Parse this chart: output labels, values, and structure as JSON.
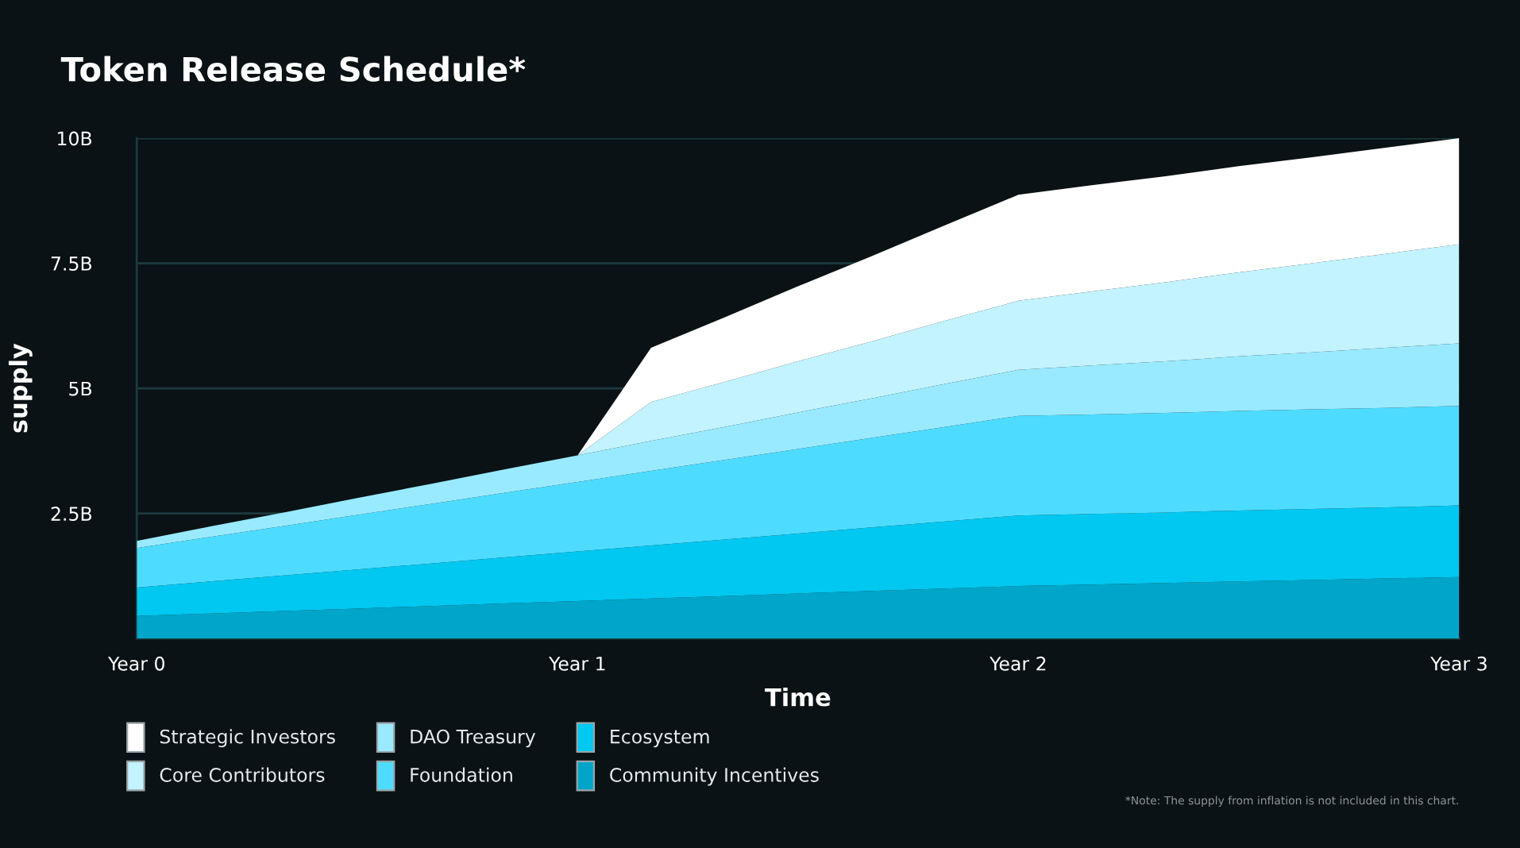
{
  "chart_data": {
    "type": "area",
    "title": "Token Release Schedule*",
    "xlabel": "Time",
    "ylabel": "supply",
    "categories": [
      "Year 0",
      null,
      null,
      null,
      null,
      null,
      "Year 1",
      null,
      null,
      null,
      null,
      null,
      "Year 2",
      null,
      null,
      null,
      null,
      null,
      "Year 3"
    ],
    "stacked": true,
    "series": [
      {
        "name": "Community Incentives",
        "color": "#00a6c9",
        "values": [
          0.45,
          0.5,
          0.55,
          0.6,
          0.65,
          0.7,
          0.75,
          0.8,
          0.85,
          0.9,
          0.95,
          1.0,
          1.05,
          1.08,
          1.11,
          1.14,
          1.17,
          1.2,
          1.23
        ]
      },
      {
        "name": "Ecosystem",
        "color": "#00c8f0",
        "values": [
          0.57,
          0.64,
          0.71,
          0.78,
          0.85,
          0.92,
          0.99,
          1.06,
          1.13,
          1.2,
          1.27,
          1.34,
          1.41,
          1.41,
          1.41,
          1.42,
          1.42,
          1.42,
          1.43
        ]
      },
      {
        "name": "Foundation",
        "color": "#4ddcff",
        "values": [
          0.79,
          0.89,
          0.99,
          1.09,
          1.19,
          1.29,
          1.39,
          1.49,
          1.59,
          1.69,
          1.79,
          1.89,
          1.99,
          1.99,
          1.99,
          1.99,
          1.99,
          1.99,
          1.99
        ]
      },
      {
        "name": "DAO Treasury",
        "color": "#99eaff",
        "values": [
          0.14,
          0.21,
          0.27,
          0.34,
          0.4,
          0.47,
          0.53,
          0.6,
          0.66,
          0.73,
          0.79,
          0.86,
          0.92,
          0.98,
          1.03,
          1.09,
          1.14,
          1.2,
          1.25
        ]
      },
      {
        "name": "Core Contributors",
        "color": "#c2f3ff",
        "values": [
          0,
          0,
          0,
          0,
          0,
          0,
          0,
          0.78,
          0.9,
          1.02,
          1.14,
          1.26,
          1.38,
          1.48,
          1.58,
          1.68,
          1.78,
          1.88,
          1.98
        ]
      },
      {
        "name": "Strategic Investors",
        "color": "#ffffff",
        "values": [
          0,
          0,
          0,
          0,
          0,
          0,
          0,
          1.08,
          1.29,
          1.5,
          1.7,
          1.91,
          2.12,
          2.12,
          2.12,
          2.12,
          2.12,
          2.12,
          2.12
        ]
      }
    ],
    "ylim": [
      0,
      10
    ],
    "yticks": [
      {
        "value": 2.5,
        "label": "2.5B"
      },
      {
        "value": 5,
        "label": "5B"
      },
      {
        "value": 7.5,
        "label": "7.5B"
      },
      {
        "value": 10,
        "label": "10B"
      }
    ],
    "grid": "y",
    "legend": "bottom",
    "annotations": [
      "*Note: The supply from inflation is not included in this chart."
    ]
  }
}
